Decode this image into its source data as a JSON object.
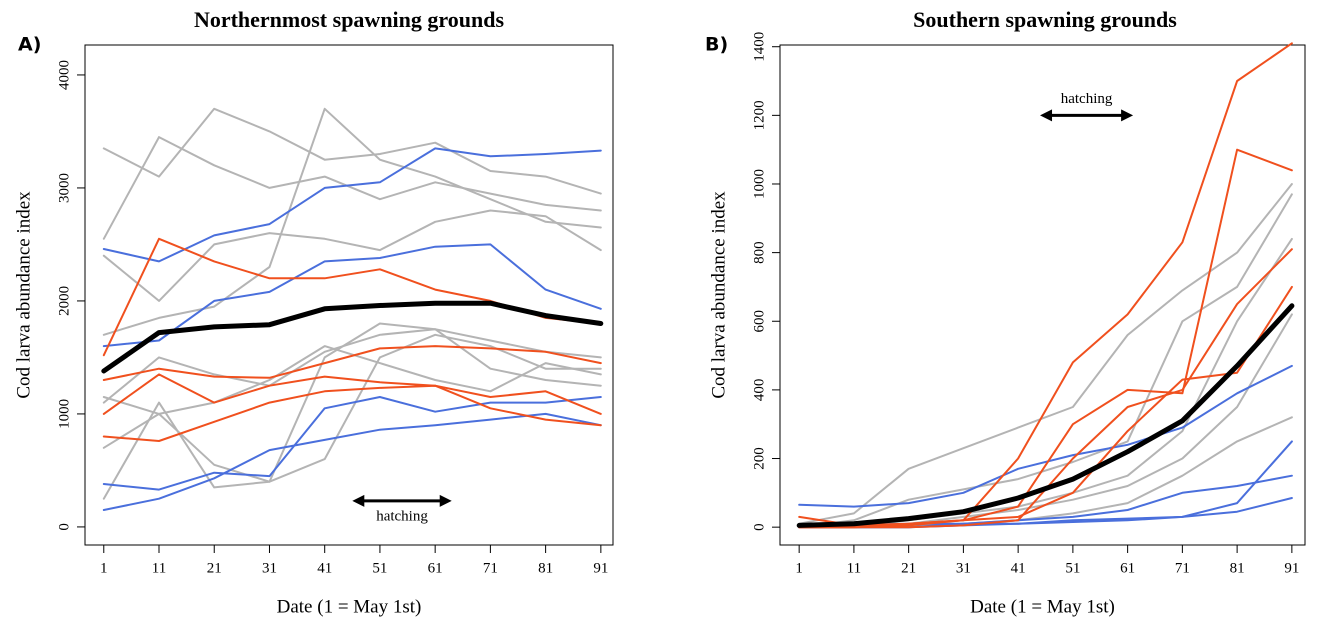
{
  "chart_data": [
    {
      "type": "line",
      "label": "A)",
      "title": "Northernmost spawning grounds",
      "xlabel": "Date (1 = May 1st)",
      "ylabel": "Cod larva abundance index",
      "x": [
        1,
        11,
        21,
        31,
        41,
        51,
        61,
        71,
        81,
        91
      ],
      "xlim": [
        -2.4,
        93.2
      ],
      "xticks": [
        1,
        11,
        21,
        31,
        41,
        51,
        61,
        71,
        81,
        91
      ],
      "ylim": [
        -160,
        4265
      ],
      "yticks": [
        0,
        1000,
        2000,
        3000,
        4000
      ],
      "annotation": {
        "text": "hatching",
        "x_start": 46,
        "x_end": 64,
        "y": 230
      },
      "series": [
        {
          "color": "#b4b4b4",
          "values": [
            3350,
            3100,
            3700,
            3500,
            3250,
            3300,
            3400,
            3150,
            3100,
            2950
          ]
        },
        {
          "color": "#b4b4b4",
          "values": [
            2550,
            3450,
            3200,
            3000,
            3100,
            2900,
            3050,
            2950,
            2850,
            2800
          ]
        },
        {
          "color": "#b4b4b4",
          "values": [
            2400,
            2000,
            2500,
            2600,
            2550,
            2450,
            2700,
            2800,
            2750,
            2450
          ]
        },
        {
          "color": "#b4b4b4",
          "values": [
            1700,
            1850,
            1950,
            2300,
            3700,
            3250,
            3100,
            2900,
            2700,
            2650
          ]
        },
        {
          "color": "#b4b4b4",
          "values": [
            1100,
            1500,
            1350,
            1250,
            1550,
            1700,
            1750,
            1650,
            1550,
            1500
          ]
        },
        {
          "color": "#b4b4b4",
          "values": [
            700,
            1000,
            550,
            400,
            600,
            1500,
            1700,
            1600,
            1400,
            1400
          ]
        },
        {
          "color": "#b4b4b4",
          "values": [
            250,
            1100,
            350,
            400,
            1500,
            1800,
            1750,
            1400,
            1300,
            1250
          ]
        },
        {
          "color": "#b4b4b4",
          "values": [
            1150,
            1000,
            1100,
            1300,
            1600,
            1450,
            1300,
            1200,
            1450,
            1350
          ]
        },
        {
          "color": "#4a6fdc",
          "values": [
            2460,
            2350,
            2580,
            2680,
            3000,
            3050,
            3350,
            3280,
            3300,
            3330
          ]
        },
        {
          "color": "#4a6fdc",
          "values": [
            1600,
            1650,
            2000,
            2080,
            2350,
            2380,
            2480,
            2500,
            2100,
            1930
          ]
        },
        {
          "color": "#4a6fdc",
          "values": [
            380,
            330,
            480,
            450,
            1050,
            1150,
            1020,
            1100,
            1100,
            1150
          ]
        },
        {
          "color": "#4a6fdc",
          "values": [
            150,
            250,
            430,
            680,
            770,
            860,
            900,
            950,
            1000,
            900
          ]
        },
        {
          "color": "#f0501e",
          "values": [
            1520,
            2550,
            2350,
            2200,
            2200,
            2280,
            2100,
            2000,
            1850,
            1800
          ]
        },
        {
          "color": "#f0501e",
          "values": [
            1300,
            1400,
            1330,
            1320,
            1450,
            1580,
            1600,
            1580,
            1550,
            1450
          ]
        },
        {
          "color": "#f0501e",
          "values": [
            1000,
            1350,
            1100,
            1250,
            1330,
            1280,
            1250,
            1150,
            1200,
            1000
          ]
        },
        {
          "color": "#f0501e",
          "values": [
            800,
            760,
            930,
            1100,
            1200,
            1230,
            1250,
            1050,
            950,
            900
          ]
        },
        {
          "color": "#000000",
          "width": 5,
          "values": [
            1380,
            1720,
            1770,
            1790,
            1930,
            1960,
            1980,
            1980,
            1870,
            1800
          ]
        }
      ]
    },
    {
      "type": "line",
      "label": "B)",
      "title": "Southern spawning grounds",
      "xlabel": "Date (1 = May 1st)",
      "ylabel": "Cod larva abundance index",
      "x": [
        1,
        11,
        21,
        31,
        41,
        51,
        61,
        71,
        81,
        91
      ],
      "xlim": [
        -2.5,
        93.4
      ],
      "xticks": [
        1,
        11,
        21,
        31,
        41,
        51,
        61,
        71,
        81,
        91
      ],
      "ylim": [
        -52,
        1405
      ],
      "yticks": [
        0,
        200,
        400,
        600,
        800,
        1000,
        1200,
        1400
      ],
      "annotation": {
        "text": "hatching",
        "x_start": 45,
        "x_end": 62,
        "y": 1200
      },
      "series": [
        {
          "color": "#b4b4b4",
          "values": [
            10,
            40,
            170,
            230,
            290,
            350,
            560,
            690,
            800,
            1000
          ]
        },
        {
          "color": "#b4b4b4",
          "values": [
            0,
            20,
            80,
            110,
            140,
            190,
            250,
            600,
            700,
            970
          ]
        },
        {
          "color": "#b4b4b4",
          "values": [
            0,
            0,
            20,
            40,
            60,
            100,
            150,
            280,
            600,
            840
          ]
        },
        {
          "color": "#b4b4b4",
          "values": [
            0,
            0,
            10,
            30,
            50,
            80,
            120,
            200,
            350,
            620
          ]
        },
        {
          "color": "#b4b4b4",
          "values": [
            0,
            0,
            5,
            10,
            20,
            40,
            70,
            150,
            250,
            320
          ]
        },
        {
          "color": "#4a6fdc",
          "values": [
            65,
            60,
            70,
            100,
            170,
            210,
            240,
            290,
            390,
            470
          ]
        },
        {
          "color": "#4a6fdc",
          "values": [
            0,
            5,
            10,
            10,
            20,
            30,
            50,
            100,
            120,
            150
          ]
        },
        {
          "color": "#4a6fdc",
          "values": [
            0,
            0,
            0,
            10,
            10,
            15,
            20,
            30,
            70,
            250
          ]
        },
        {
          "color": "#4a6fdc",
          "values": [
            0,
            0,
            0,
            5,
            10,
            20,
            25,
            30,
            45,
            85
          ]
        },
        {
          "color": "#f0501e",
          "values": [
            30,
            5,
            10,
            20,
            200,
            480,
            620,
            830,
            1300,
            1410
          ]
        },
        {
          "color": "#f0501e",
          "values": [
            0,
            0,
            5,
            20,
            60,
            300,
            400,
            390,
            1100,
            1040
          ]
        },
        {
          "color": "#f0501e",
          "values": [
            0,
            0,
            0,
            5,
            20,
            200,
            350,
            400,
            650,
            810
          ]
        },
        {
          "color": "#f0501e",
          "values": [
            0,
            0,
            10,
            20,
            30,
            100,
            280,
            430,
            450,
            700
          ]
        },
        {
          "color": "#000000",
          "width": 5,
          "values": [
            5,
            10,
            25,
            45,
            85,
            140,
            220,
            310,
            470,
            645
          ]
        }
      ]
    }
  ]
}
